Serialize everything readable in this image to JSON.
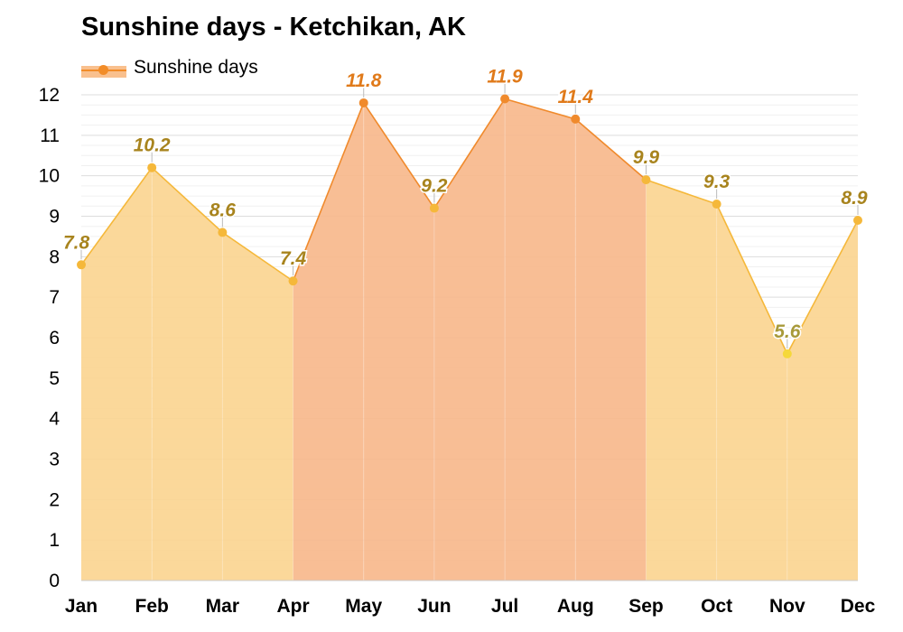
{
  "chart_data": {
    "type": "area",
    "title": "Sunshine days - Ketchikan, AK",
    "categories": [
      "Jan",
      "Feb",
      "Mar",
      "Apr",
      "May",
      "Jun",
      "Jul",
      "Aug",
      "Sep",
      "Oct",
      "Nov",
      "Dec"
    ],
    "series": [
      {
        "name": "Sunshine days",
        "values": [
          7.8,
          10.2,
          8.6,
          7.4,
          11.8,
          9.2,
          11.9,
          11.4,
          9.9,
          9.3,
          5.6,
          8.9
        ]
      }
    ],
    "data_labels": [
      "7.8",
      "10.2",
      "8.6",
      "7.4",
      "11.8",
      "9.2",
      "11.9",
      "11.4",
      "9.9",
      "9.3",
      "5.6",
      "8.9"
    ],
    "y_ticks": [
      "0",
      "1",
      "2",
      "3",
      "4",
      "5",
      "6",
      "7",
      "8",
      "9",
      "10",
      "11",
      "12"
    ],
    "ylim": [
      0,
      12
    ],
    "grid": true,
    "legend_position": "top-left",
    "colors": {
      "low_fill": "#fff3a8",
      "mid_fill": "#fbd48f",
      "high_fill": "#f7b789",
      "low_line": "#f5d83a",
      "mid_line": "#f5b83a",
      "high_line": "#f08a2c",
      "low_label": "#a89a3a",
      "mid_label": "#a8841e",
      "high_label": "#e07a1a",
      "grid": "#e6e6e6",
      "axis": "#cccccc",
      "legend_fill": "#f9c08e",
      "legend_line": "#f28c28"
    }
  }
}
